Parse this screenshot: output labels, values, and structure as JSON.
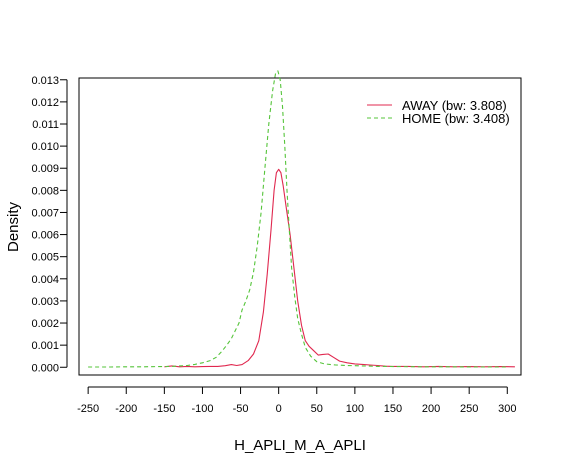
{
  "chart_data": {
    "type": "line",
    "title": "",
    "xlabel": "H_APLI_M_A_APLI",
    "ylabel": "Density",
    "xlim": [
      -262,
      318
    ],
    "ylim": [
      -0.00035,
      0.01308
    ],
    "x_ticks": [
      -250,
      -200,
      -150,
      -100,
      -50,
      0,
      50,
      100,
      150,
      200,
      250,
      300
    ],
    "y_ticks": [
      0.0,
      0.001,
      0.002,
      0.003,
      0.004,
      0.005,
      0.006,
      0.007,
      0.008,
      0.009,
      0.01,
      0.011,
      0.012,
      0.013
    ],
    "y_tick_labels": [
      "0.000",
      "0.001",
      "0.002",
      "0.003",
      "0.004",
      "0.005",
      "0.006",
      "0.007",
      "0.008",
      "0.009",
      "0.010",
      "0.011",
      "0.012",
      "0.013"
    ],
    "grid": false,
    "legend_position": "top-right",
    "series": [
      {
        "name": "AWAY (bw: 3.808)",
        "color": "#e0284f",
        "dash": "solid",
        "points": [
          [
            -150,
            2e-05
          ],
          [
            -140,
            6e-05
          ],
          [
            -130,
            2e-05
          ],
          [
            -120,
            4e-05
          ],
          [
            -110,
            2e-05
          ],
          [
            -100,
            3e-05
          ],
          [
            -90,
            4e-05
          ],
          [
            -80,
            4e-05
          ],
          [
            -70,
            7e-05
          ],
          [
            -62,
            0.00012
          ],
          [
            -55,
            8e-05
          ],
          [
            -48,
            0.00012
          ],
          [
            -40,
            0.0003
          ],
          [
            -33,
            0.0006
          ],
          [
            -26,
            0.0012
          ],
          [
            -20,
            0.0025
          ],
          [
            -15,
            0.0042
          ],
          [
            -10,
            0.0062
          ],
          [
            -6,
            0.008
          ],
          [
            -3,
            0.0088
          ],
          [
            0,
            0.00895
          ],
          [
            3,
            0.0088
          ],
          [
            6,
            0.0082
          ],
          [
            10,
            0.0072
          ],
          [
            15,
            0.006
          ],
          [
            20,
            0.0045
          ],
          [
            25,
            0.003
          ],
          [
            30,
            0.0019
          ],
          [
            35,
            0.0012
          ],
          [
            40,
            0.00095
          ],
          [
            46,
            0.00075
          ],
          [
            52,
            0.00055
          ],
          [
            58,
            0.00058
          ],
          [
            65,
            0.0006
          ],
          [
            72,
            0.00045
          ],
          [
            80,
            0.00028
          ],
          [
            90,
            0.0002
          ],
          [
            100,
            0.00015
          ],
          [
            110,
            0.00013
          ],
          [
            120,
            0.0001
          ],
          [
            130,
            8e-05
          ],
          [
            140,
            5e-05
          ],
          [
            150,
            4e-05
          ],
          [
            170,
            4e-05
          ],
          [
            190,
            2e-05
          ],
          [
            210,
            4e-05
          ],
          [
            230,
            2e-05
          ],
          [
            250,
            3e-05
          ],
          [
            270,
            2e-05
          ],
          [
            290,
            3e-05
          ],
          [
            310,
            2e-05
          ]
        ]
      },
      {
        "name": "HOME (bw: 3.408)",
        "color": "#55c43a",
        "dash": "dashed",
        "points": [
          [
            -250,
            1e-05
          ],
          [
            -220,
            1e-05
          ],
          [
            -200,
            2e-05
          ],
          [
            -180,
            2e-05
          ],
          [
            -160,
            3e-05
          ],
          [
            -140,
            4e-05
          ],
          [
            -120,
            8e-05
          ],
          [
            -110,
            0.00013
          ],
          [
            -100,
            0.0002
          ],
          [
            -90,
            0.0003
          ],
          [
            -82,
            0.00045
          ],
          [
            -75,
            0.0007
          ],
          [
            -68,
            0.001
          ],
          [
            -62,
            0.0013
          ],
          [
            -57,
            0.00165
          ],
          [
            -52,
            0.002
          ],
          [
            -48,
            0.0026
          ],
          [
            -43,
            0.003
          ],
          [
            -38,
            0.0035
          ],
          [
            -33,
            0.0043
          ],
          [
            -28,
            0.0055
          ],
          [
            -23,
            0.007
          ],
          [
            -18,
            0.009
          ],
          [
            -13,
            0.011
          ],
          [
            -8,
            0.0125
          ],
          [
            -4,
            0.0133
          ],
          [
            -1,
            0.0134
          ],
          [
            2,
            0.013
          ],
          [
            5,
            0.0118
          ],
          [
            8,
            0.01
          ],
          [
            11,
            0.008
          ],
          [
            14,
            0.0062
          ],
          [
            17,
            0.0045
          ],
          [
            21,
            0.0032
          ],
          [
            25,
            0.0022
          ],
          [
            30,
            0.0015
          ],
          [
            35,
            0.0009
          ],
          [
            42,
            0.0005
          ],
          [
            50,
            0.00025
          ],
          [
            60,
            0.00015
          ],
          [
            75,
            0.0001
          ],
          [
            90,
            8e-05
          ],
          [
            110,
            6e-05
          ],
          [
            130,
            4e-05
          ],
          [
            160,
            3e-05
          ],
          [
            190,
            2e-05
          ],
          [
            220,
            2e-05
          ],
          [
            260,
            1e-05
          ],
          [
            300,
            1e-05
          ]
        ]
      }
    ]
  }
}
